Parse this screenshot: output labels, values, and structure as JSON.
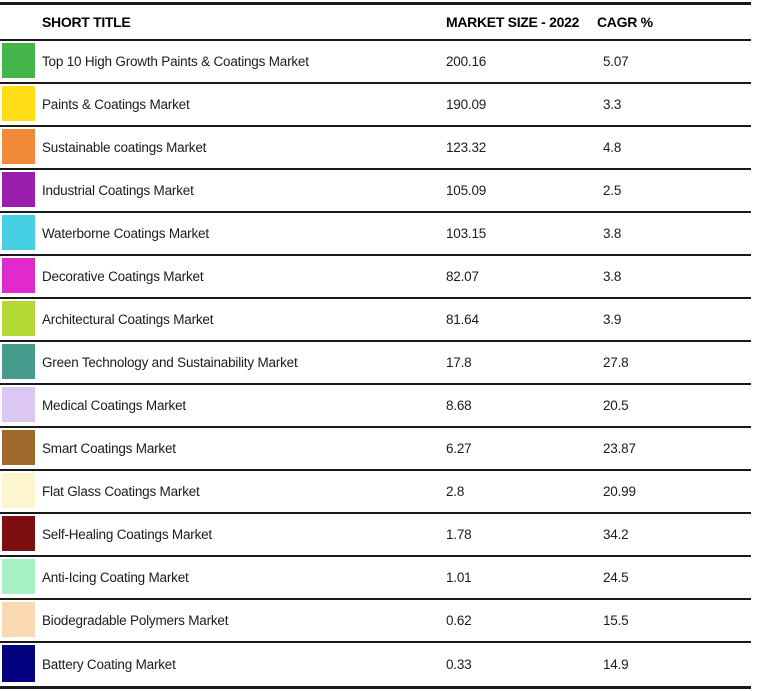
{
  "chart_data": {
    "type": "table",
    "columns": [
      "SHORT TITLE",
      "MARKET SIZE - 2022",
      "CAGR %"
    ],
    "rows": [
      {
        "short_title": "Top 10 High Growth Paints & Coatings Market",
        "market_size_2022": "200.16",
        "cagr_pct": "5.07",
        "swatch_color": "#45B549"
      },
      {
        "short_title": "Paints & Coatings Market",
        "market_size_2022": "190.09",
        "cagr_pct": "3.3",
        "swatch_color": "#FEDD16"
      },
      {
        "short_title": "Sustainable coatings Market",
        "market_size_2022": "123.32",
        "cagr_pct": "4.8",
        "swatch_color": "#F08A38"
      },
      {
        "short_title": "Industrial Coatings Market",
        "market_size_2022": "105.09",
        "cagr_pct": "2.5",
        "swatch_color": "#9A1FAE"
      },
      {
        "short_title": "Waterborne Coatings Market",
        "market_size_2022": "103.15",
        "cagr_pct": "3.8",
        "swatch_color": "#46CEE4"
      },
      {
        "short_title": "Decorative Coatings Market",
        "market_size_2022": "82.07",
        "cagr_pct": "3.8",
        "swatch_color": "#E02ACC"
      },
      {
        "short_title": "Architectural Coatings Market",
        "market_size_2022": "81.64",
        "cagr_pct": "3.9",
        "swatch_color": "#B3D936"
      },
      {
        "short_title": "Green Technology and Sustainability Market",
        "market_size_2022": "17.8",
        "cagr_pct": "27.8",
        "swatch_color": "#489C8E"
      },
      {
        "short_title": "Medical Coatings Market",
        "market_size_2022": "8.68",
        "cagr_pct": "20.5",
        "swatch_color": "#DCC6F2"
      },
      {
        "short_title": "Smart Coatings Market",
        "market_size_2022": "6.27",
        "cagr_pct": "23.87",
        "swatch_color": "#A0692C"
      },
      {
        "short_title": "Flat Glass Coatings Market",
        "market_size_2022": "2.8",
        "cagr_pct": "20.99",
        "swatch_color": "#FDF5CD"
      },
      {
        "short_title": "Self-Healing Coatings Market",
        "market_size_2022": "1.78",
        "cagr_pct": "34.2",
        "swatch_color": "#7D0F10"
      },
      {
        "short_title": "Anti-Icing Coating Market",
        "market_size_2022": "1.01",
        "cagr_pct": "24.5",
        "swatch_color": "#A7F0C4"
      },
      {
        "short_title": "Biodegradable Polymers Market",
        "market_size_2022": "0.62",
        "cagr_pct": "15.5",
        "swatch_color": "#FAD8B2"
      },
      {
        "short_title": "Battery Coating Market",
        "market_size_2022": "0.33",
        "cagr_pct": "14.9",
        "swatch_color": "#02027E"
      }
    ]
  },
  "colors": {
    "border": "#1a1a1a",
    "background": "#ffffff",
    "text": "#1c1c1c"
  }
}
